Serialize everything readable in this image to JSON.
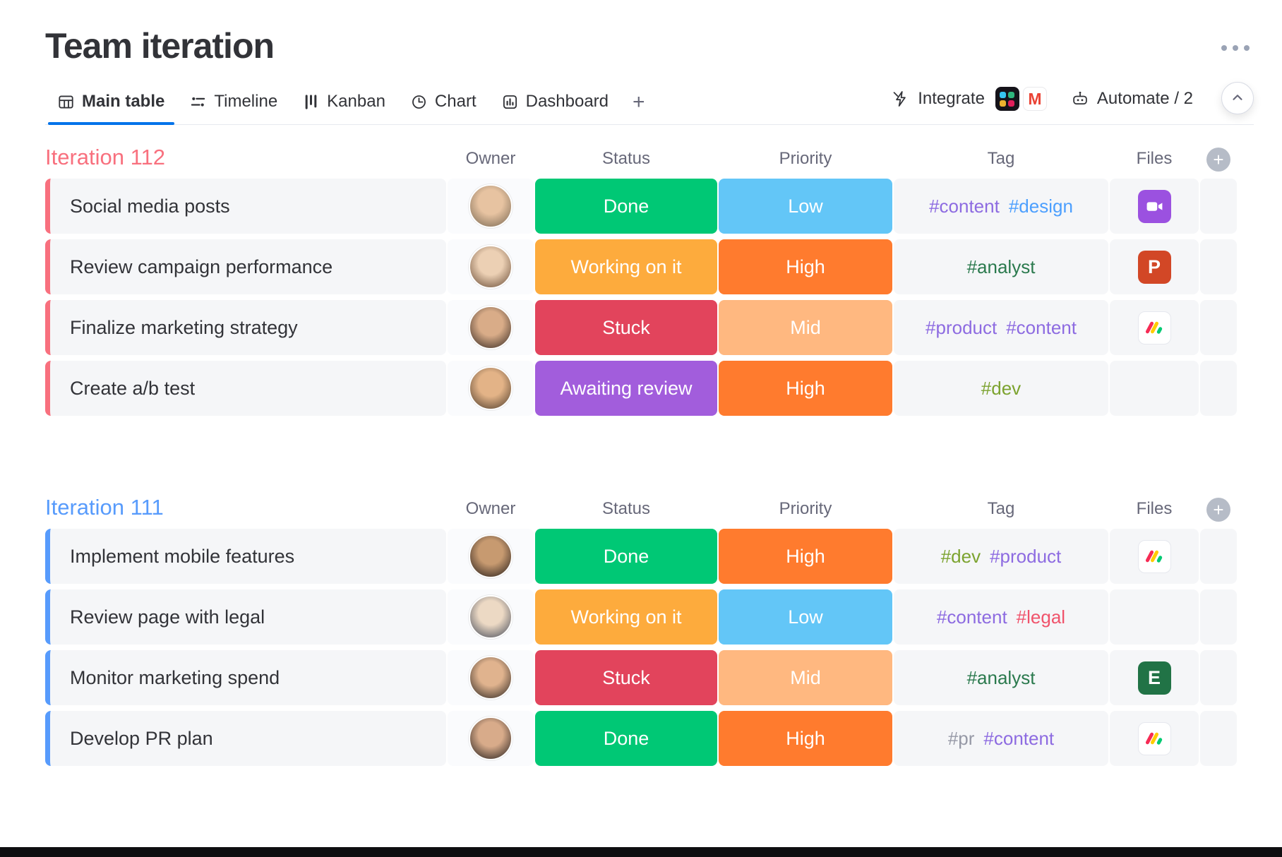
{
  "app": {
    "title": "Team iteration",
    "accent": "#0073ea"
  },
  "tabs": {
    "items": [
      {
        "label": "Main table",
        "icon": "table-icon",
        "active": true
      },
      {
        "label": "Timeline",
        "icon": "timeline-icon",
        "active": false
      },
      {
        "label": "Kanban",
        "icon": "kanban-icon",
        "active": false
      },
      {
        "label": "Chart",
        "icon": "chart-icon",
        "active": false
      },
      {
        "label": "Dashboard",
        "icon": "dashboard-icon",
        "active": false
      }
    ],
    "add_tab_label": "+"
  },
  "toolbar": {
    "integrate_label": "Integrate",
    "automate_label": "Automate / 2",
    "app_colors": {
      "slack_bg": "#15131a",
      "slack_dots": [
        "#36c5f0",
        "#2eb67d",
        "#ecb22e",
        "#e01e5a"
      ],
      "gmail_m": "#ea4335",
      "gmail_letter": "M"
    }
  },
  "table": {
    "columns": [
      "Owner",
      "Status",
      "Priority",
      "Tag",
      "Files"
    ]
  },
  "monday_logo_colors": [
    "#f62b54",
    "#ffcc00",
    "#00ca72"
  ],
  "groups": [
    {
      "name": "Iteration 112",
      "color": "#f8707e",
      "rows": [
        {
          "task": "Social media posts",
          "avatar": {
            "inner": "#e7c3a1",
            "outer": "#7d6b55"
          },
          "status": {
            "label": "Done",
            "color": "#00c875"
          },
          "priority": {
            "label": "Low",
            "color": "#63c6f7"
          },
          "tags": [
            {
              "label": "#content",
              "color": "#8d6be1"
            },
            {
              "label": "#design",
              "color": "#4c9ffe"
            }
          ],
          "file": {
            "kind": "video",
            "color": "#9b51e0"
          }
        },
        {
          "task": "Review campaign performance",
          "avatar": {
            "inner": "#ecd0b4",
            "outer": "#6e513b"
          },
          "status": {
            "label": "Working on it",
            "color": "#fdab3d"
          },
          "priority": {
            "label": "High",
            "color": "#ff7b2e"
          },
          "tags": [
            {
              "label": "#analyst",
              "color": "#2b7a4e"
            }
          ],
          "file": {
            "kind": "letter",
            "letter": "P",
            "color": "#d24726"
          }
        },
        {
          "task": "Finalize marketing strategy",
          "avatar": {
            "inner": "#d9ac88",
            "outer": "#3c2e26"
          },
          "status": {
            "label": "Stuck",
            "color": "#e2445c"
          },
          "priority": {
            "label": "Mid",
            "color": "#ffb880"
          },
          "tags": [
            {
              "label": "#product",
              "color": "#8d6be1"
            },
            {
              "label": "#content",
              "color": "#8d6be1"
            }
          ],
          "file": {
            "kind": "monday"
          }
        },
        {
          "task": "Create a/b test",
          "avatar": {
            "inner": "#e3b387",
            "outer": "#54412f"
          },
          "status": {
            "label": "Awaiting review",
            "color": "#a25ddc"
          },
          "priority": {
            "label": "High",
            "color": "#ff7b2e"
          },
          "tags": [
            {
              "label": "#dev",
              "color": "#7ca32f"
            }
          ],
          "file": {
            "kind": "none"
          }
        }
      ]
    },
    {
      "name": "Iteration 111",
      "color": "#579bfc",
      "rows": [
        {
          "task": "Implement mobile features",
          "avatar": {
            "inner": "#c79a70",
            "outer": "#2b211c"
          },
          "status": {
            "label": "Done",
            "color": "#00c875"
          },
          "priority": {
            "label": "High",
            "color": "#ff7b2e"
          },
          "tags": [
            {
              "label": "#dev",
              "color": "#7ca32f"
            },
            {
              "label": "#product",
              "color": "#8d6be1"
            }
          ],
          "file": {
            "kind": "monday"
          }
        },
        {
          "task": "Review page with legal",
          "avatar": {
            "inner": "#ecd9c4",
            "outer": "#4a4f5c"
          },
          "status": {
            "label": "Working on it",
            "color": "#fdab3d"
          },
          "priority": {
            "label": "Low",
            "color": "#63c6f7"
          },
          "tags": [
            {
              "label": "#content",
              "color": "#8d6be1"
            },
            {
              "label": "#legal",
              "color": "#f0536b"
            }
          ],
          "file": {
            "kind": "none"
          }
        },
        {
          "task": "Monitor marketing spend",
          "avatar": {
            "inner": "#e0b38e",
            "outer": "#332a24"
          },
          "status": {
            "label": "Stuck",
            "color": "#e2445c"
          },
          "priority": {
            "label": "Mid",
            "color": "#ffb880"
          },
          "tags": [
            {
              "label": "#analyst",
              "color": "#2b7a4e"
            }
          ],
          "file": {
            "kind": "letter",
            "letter": "E",
            "color": "#217346"
          }
        },
        {
          "task": "Develop PR plan",
          "avatar": {
            "inner": "#d8ab8a",
            "outer": "#2b2320"
          },
          "status": {
            "label": "Done",
            "color": "#00c875"
          },
          "priority": {
            "label": "High",
            "color": "#ff7b2e"
          },
          "tags": [
            {
              "label": "#pr",
              "color": "#9699a6"
            },
            {
              "label": "#content",
              "color": "#8d6be1"
            }
          ],
          "file": {
            "kind": "monday"
          }
        }
      ]
    }
  ]
}
